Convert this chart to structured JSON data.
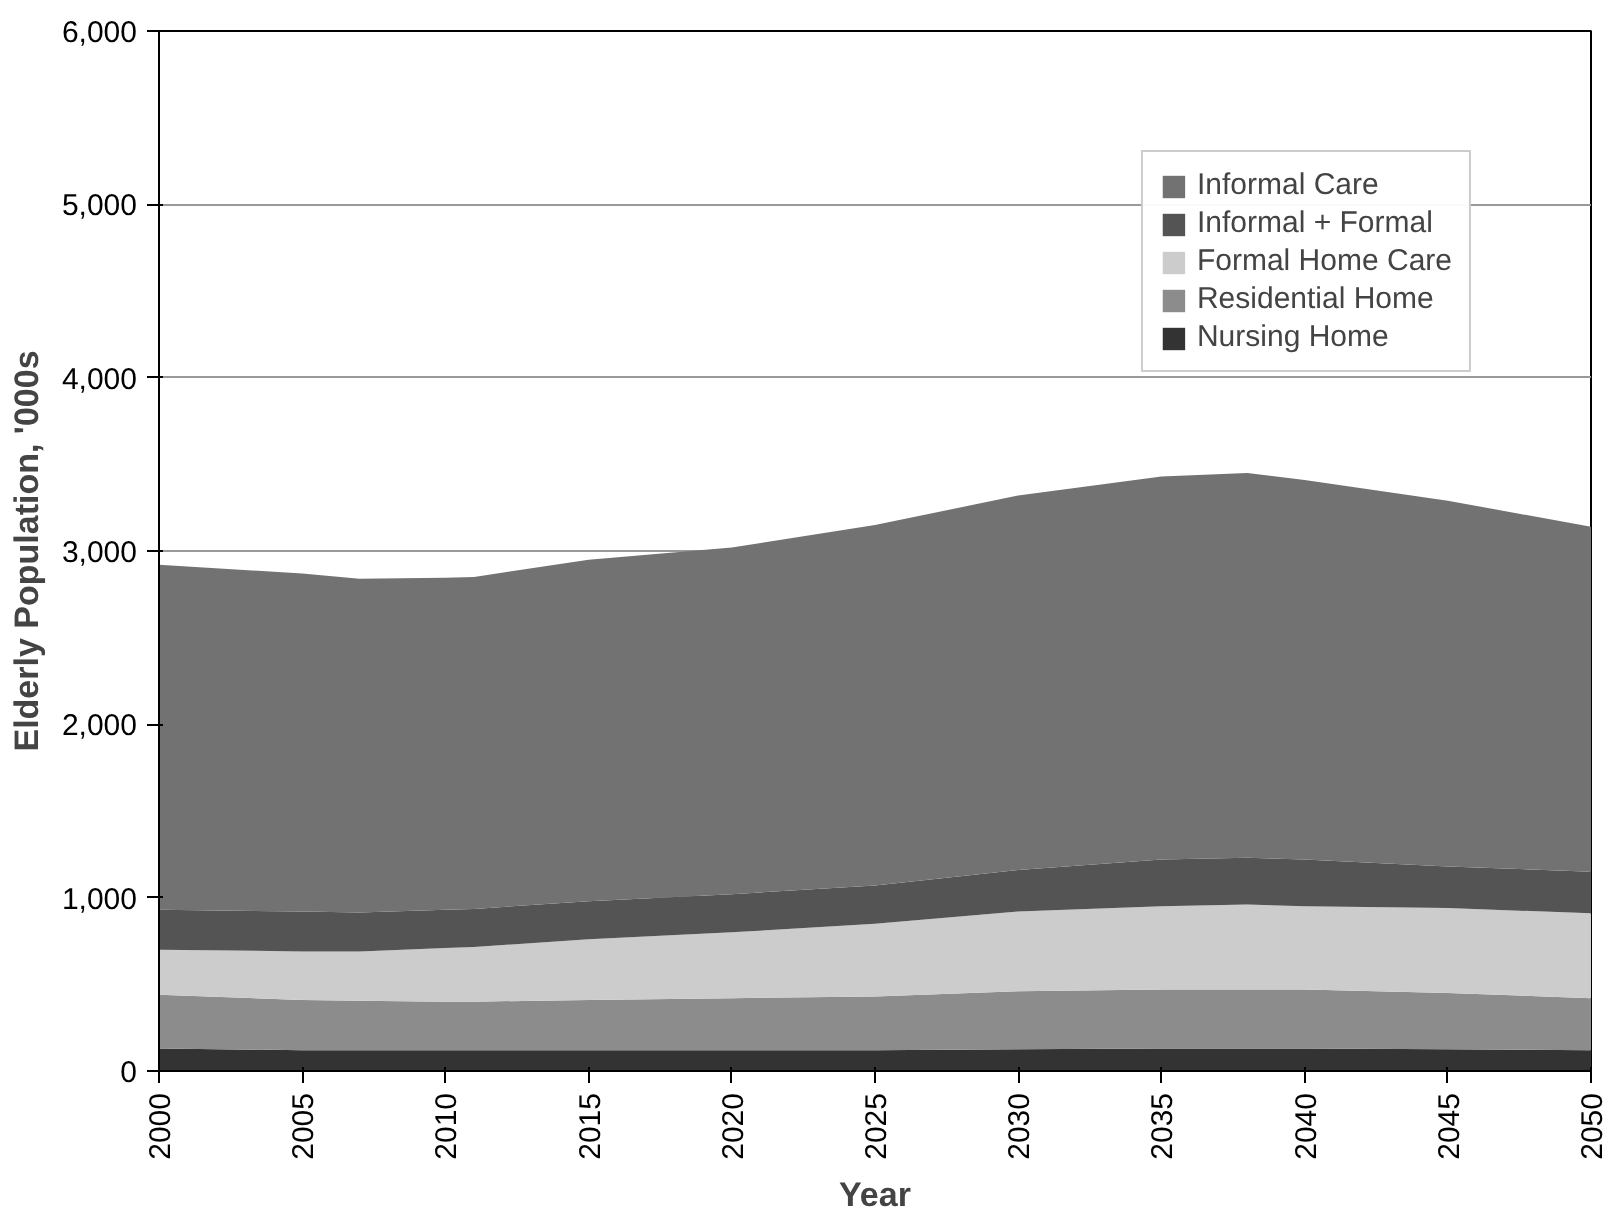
{
  "chart_data": {
    "type": "area",
    "stacked": true,
    "xlabel": "Year",
    "ylabel": "Elderly Population, '000s",
    "x": [
      2000,
      2005,
      2007,
      2010,
      2011,
      2015,
      2020,
      2025,
      2030,
      2035,
      2038,
      2040,
      2045,
      2050
    ],
    "series": [
      {
        "name": "Nursing Home",
        "color": "#333333",
        "values": [
          130,
          120,
          120,
          120,
          120,
          120,
          120,
          120,
          125,
          130,
          130,
          130,
          125,
          120
        ]
      },
      {
        "name": "Residential Home",
        "color": "#8c8c8c",
        "values": [
          310,
          290,
          285,
          280,
          280,
          290,
          300,
          310,
          335,
          340,
          340,
          340,
          325,
          300
        ]
      },
      {
        "name": "Formal Home Care",
        "color": "#cccccc",
        "values": [
          260,
          280,
          285,
          310,
          315,
          350,
          380,
          420,
          460,
          480,
          490,
          480,
          490,
          490
        ]
      },
      {
        "name": "Informal + Formal",
        "color": "#545454",
        "values": [
          230,
          230,
          225,
          220,
          220,
          220,
          220,
          220,
          240,
          270,
          270,
          270,
          240,
          240
        ]
      },
      {
        "name": "Informal Care",
        "color": "#727272",
        "values": [
          1990,
          1950,
          1925,
          1915,
          1915,
          1970,
          2000,
          2080,
          2160,
          2210,
          2220,
          2190,
          2110,
          1990
        ]
      }
    ],
    "xlim": [
      2000,
      2050
    ],
    "xticks": [
      2000,
      2005,
      2010,
      2015,
      2020,
      2025,
      2030,
      2035,
      2040,
      2045,
      2050
    ],
    "ylim": [
      0,
      6000
    ],
    "yticks": [
      {
        "value": 0,
        "label": "0"
      },
      {
        "value": 1000,
        "label": "1,000"
      },
      {
        "value": 2000,
        "label": "2,000"
      },
      {
        "value": 3000,
        "label": "3,000"
      },
      {
        "value": 4000,
        "label": "4,000"
      },
      {
        "value": 5000,
        "label": "5,000"
      },
      {
        "value": 6000,
        "label": "6,000"
      }
    ],
    "grid": "y",
    "legend": "top right"
  }
}
